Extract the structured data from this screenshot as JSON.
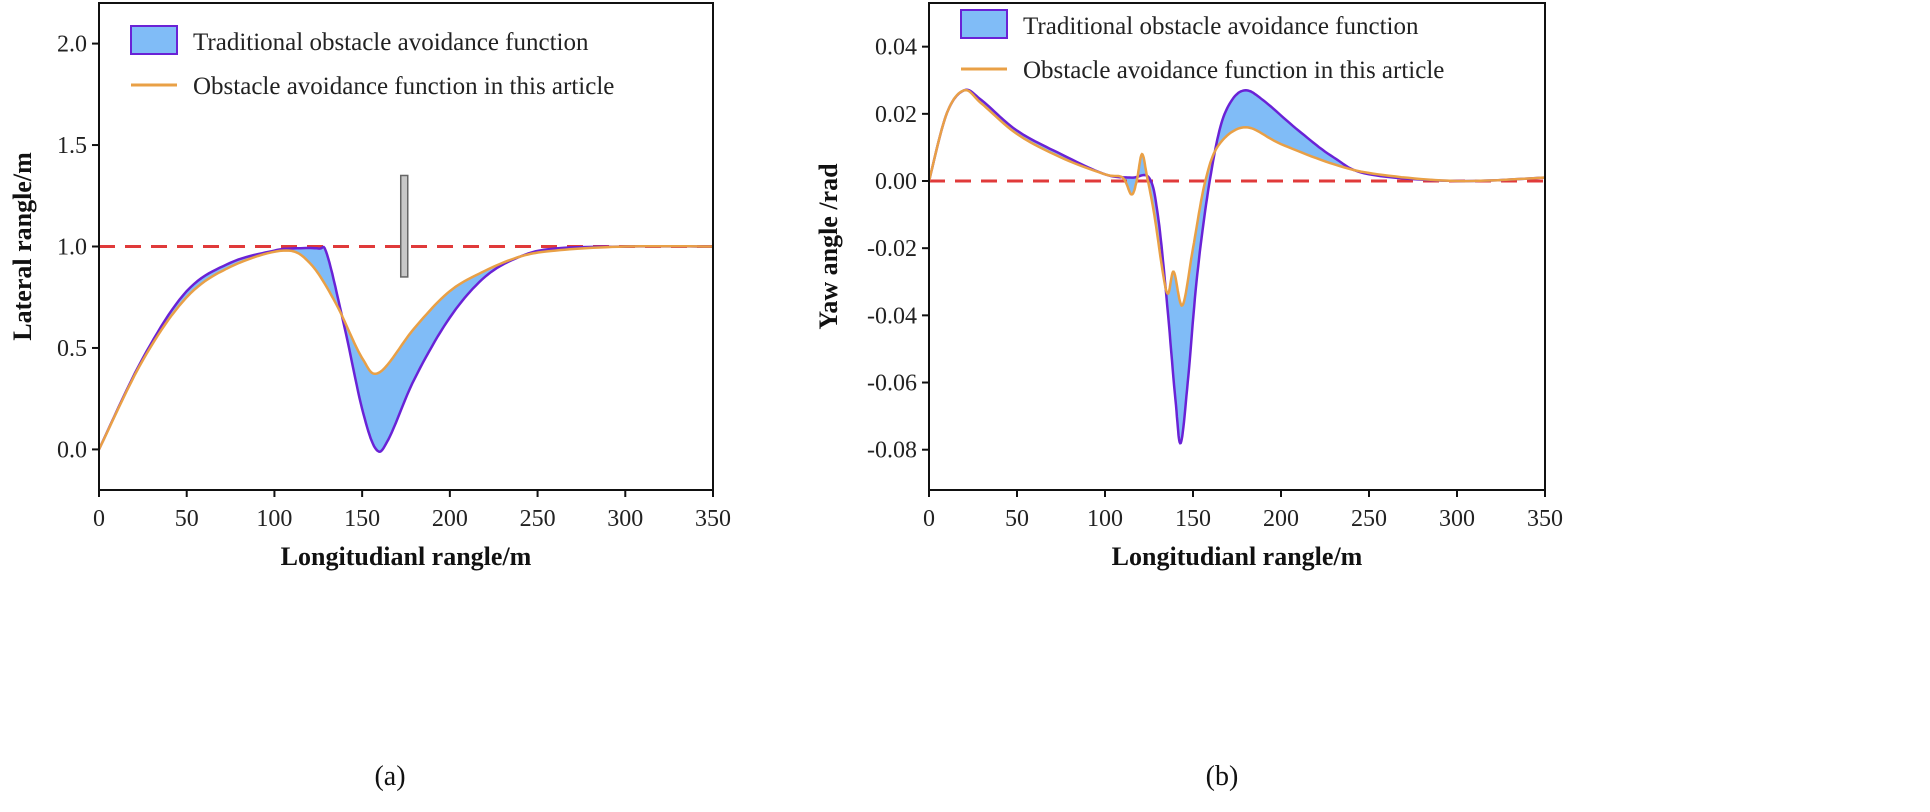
{
  "colors": {
    "traditional_fill": "#80bcf7",
    "traditional_line": "#6a22d6",
    "proposed_line": "#e9a046",
    "reference_line": "#e03a3a",
    "obstacle": "#c8c8c8"
  },
  "chart_data": [
    {
      "type": "area",
      "caption": "(a)",
      "xlabel": "Longitudianl rangle/m",
      "ylabel": "Lateral rangle/m",
      "xlim": [
        0,
        350
      ],
      "ylim": [
        -0.2,
        2.2
      ],
      "xticks": [
        0,
        50,
        100,
        150,
        200,
        250,
        300,
        350
      ],
      "yticks": [
        0.0,
        0.5,
        1.0,
        1.5,
        2.0
      ],
      "ytick_labels": [
        "0.0",
        "0.5",
        "1.0",
        "1.5",
        "2.0"
      ],
      "grid": false,
      "legend_placement": "top-left",
      "reference_line": 1.0,
      "obstacle": {
        "x": [
          172,
          176
        ],
        "y": [
          0.85,
          1.35
        ]
      },
      "series": [
        {
          "name": "Traditional obstacle avoidance function",
          "x": [
            0,
            25,
            50,
            75,
            100,
            110,
            125,
            130,
            140,
            150,
            158,
            165,
            180,
            200,
            220,
            240,
            260,
            300,
            350
          ],
          "y": [
            0,
            0.45,
            0.78,
            0.92,
            0.98,
            0.99,
            0.99,
            0.96,
            0.6,
            0.2,
            0.0,
            0.05,
            0.35,
            0.65,
            0.85,
            0.95,
            0.99,
            1.0,
            1.0
          ]
        },
        {
          "name": "Obstacle avoidance function in this article",
          "x": [
            0,
            25,
            50,
            75,
            105,
            120,
            135,
            150,
            160,
            180,
            200,
            220,
            240,
            260,
            300,
            350
          ],
          "y": [
            0,
            0.44,
            0.75,
            0.9,
            0.98,
            0.92,
            0.72,
            0.45,
            0.38,
            0.6,
            0.78,
            0.88,
            0.95,
            0.98,
            1.0,
            1.0
          ]
        }
      ]
    },
    {
      "type": "area",
      "caption": "(b)",
      "xlabel": "Longitudianl rangle/m",
      "ylabel": "Yaw angle /rad",
      "xlim": [
        0,
        350
      ],
      "ylim": [
        -0.092,
        0.053
      ],
      "xticks": [
        0,
        50,
        100,
        150,
        200,
        250,
        300,
        350
      ],
      "yticks": [
        -0.08,
        -0.06,
        -0.04,
        -0.02,
        0.0,
        0.02,
        0.04
      ],
      "ytick_labels": [
        "-0.08",
        "-0.06",
        "-0.04",
        "-0.02",
        "0.00",
        "0.02",
        "0.04"
      ],
      "grid": false,
      "legend_placement": "top-left",
      "reference_line": 0.0,
      "series": [
        {
          "name": "Traditional obstacle avoidance function",
          "x": [
            0,
            10,
            20,
            30,
            50,
            75,
            100,
            115,
            125,
            130,
            135,
            140,
            143,
            147,
            152,
            158,
            165,
            172,
            180,
            190,
            210,
            230,
            250,
            300,
            350
          ],
          "y": [
            0,
            0.02,
            0.027,
            0.024,
            0.015,
            0.008,
            0.002,
            0.001,
            0.001,
            -0.01,
            -0.035,
            -0.065,
            -0.078,
            -0.06,
            -0.03,
            -0.005,
            0.015,
            0.024,
            0.027,
            0.024,
            0.015,
            0.007,
            0.002,
            0.0,
            0.001
          ]
        },
        {
          "name": "Obstacle avoidance function in this article",
          "x": [
            0,
            10,
            20,
            30,
            50,
            75,
            100,
            110,
            115,
            118,
            121,
            124,
            128,
            135,
            139,
            144,
            150,
            157,
            165,
            180,
            200,
            230,
            255,
            300,
            350
          ],
          "y": [
            0,
            0.02,
            0.027,
            0.023,
            0.014,
            0.007,
            0.002,
            0.001,
            -0.004,
            0.0,
            0.008,
            0.001,
            -0.01,
            -0.033,
            -0.027,
            -0.037,
            -0.02,
            0.0,
            0.011,
            0.016,
            0.011,
            0.005,
            0.002,
            0.0,
            0.001
          ]
        }
      ]
    }
  ]
}
